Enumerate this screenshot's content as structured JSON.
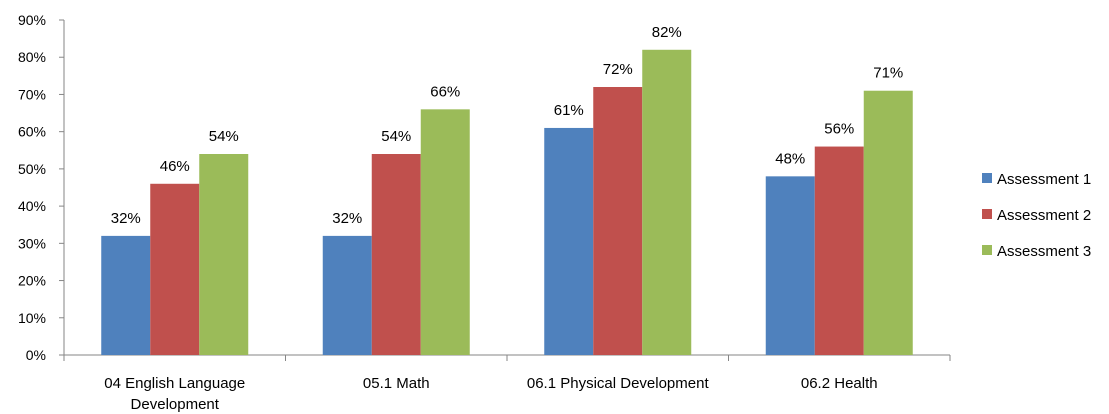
{
  "chart_data": {
    "type": "bar",
    "categories": [
      [
        "04 English Language",
        "Development"
      ],
      [
        "05.1 Math"
      ],
      [
        "06.1 Physical Development"
      ],
      [
        "06.2 Health"
      ]
    ],
    "series": [
      {
        "name": "Assessment 1",
        "color": "#4f81bd",
        "values": [
          32,
          32,
          61,
          48
        ],
        "labels": [
          "32%",
          "32%",
          "61%",
          "48%"
        ]
      },
      {
        "name": "Assessment 2",
        "color": "#c0504d",
        "values": [
          46,
          54,
          72,
          56
        ],
        "labels": [
          "46%",
          "54%",
          "72%",
          "56%"
        ]
      },
      {
        "name": "Assessment 3",
        "color": "#9bbb59",
        "values": [
          54,
          66,
          82,
          71
        ],
        "labels": [
          "54%",
          "66%",
          "82%",
          "71%"
        ]
      }
    ],
    "y_ticks": [
      "0%",
      "10%",
      "20%",
      "30%",
      "40%",
      "50%",
      "60%",
      "70%",
      "80%",
      "90%"
    ],
    "ylim": [
      0,
      90
    ],
    "grid": false,
    "legend_position": "right"
  }
}
